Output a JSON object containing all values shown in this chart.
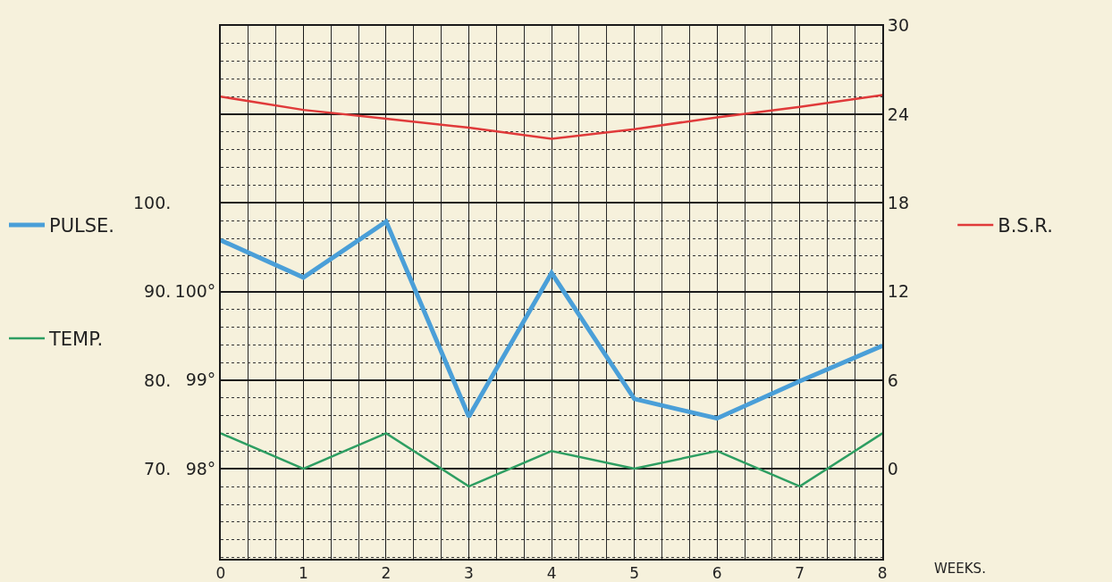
{
  "chart_data": {
    "type": "line",
    "xlabel": "WEEKS.",
    "x": [
      0,
      1,
      2,
      3,
      4,
      5,
      6,
      7,
      8
    ],
    "xlim": [
      0,
      8
    ],
    "xticks": [
      0,
      1,
      2,
      3,
      4,
      5,
      6,
      7,
      8
    ],
    "ylim": [
      59.83,
      120
    ],
    "yticks": [
      {
        "value": 70,
        "label": "70."
      },
      {
        "value": 80,
        "label": "80."
      },
      {
        "value": 90,
        "label": "90."
      },
      {
        "value": 100,
        "label": "100."
      }
    ],
    "y2lim": [
      -6.1,
      30
    ],
    "y2ticks": [
      0,
      6,
      12,
      18,
      24,
      30
    ],
    "y3lim": [
      96.98,
      103
    ],
    "y3ticks": [
      {
        "value": 98,
        "label": "98°"
      },
      {
        "value": 99,
        "label": "99°"
      },
      {
        "value": 100,
        "label": "100°"
      }
    ],
    "grid": true,
    "legend": "left",
    "series": [
      {
        "name": "PULSE.",
        "color": "#4a9fd8",
        "axis": "y",
        "values": [
          95.8,
          91.6,
          97.9,
          75.9,
          92.1,
          77.9,
          75.7,
          79.9,
          83.9
        ]
      },
      {
        "name": "TEMP.",
        "color": "#2e9e62",
        "axis": "y3",
        "values": [
          98.4,
          98.0,
          98.4,
          97.8,
          98.2,
          98.0,
          98.2,
          97.8,
          98.4
        ]
      },
      {
        "name": "B.S.R.",
        "color": "#e03a3a",
        "axis": "y2",
        "values": [
          25.2,
          24.3,
          23.7,
          23.1,
          22.35,
          23.0,
          23.8,
          24.5,
          25.3
        ]
      }
    ]
  }
}
